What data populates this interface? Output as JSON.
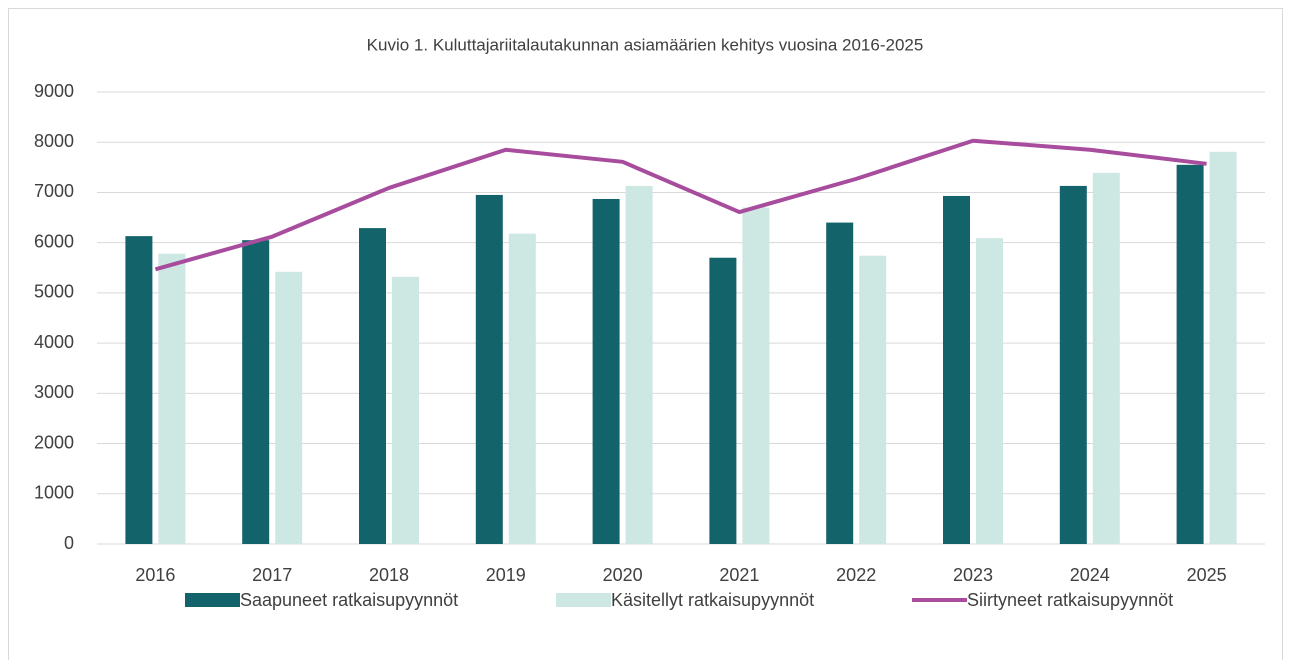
{
  "chart_data": {
    "type": "bar_line",
    "title": "Kuvio 1. Kuluttajariitalautakunnan asiamäärien kehitys vuosina 2016-2025",
    "categories": [
      "2016",
      "2017",
      "2018",
      "2019",
      "2020",
      "2021",
      "2022",
      "2023",
      "2024",
      "2025"
    ],
    "series": [
      {
        "name": "Saapuneet ratkaisupyynnöt",
        "type": "bar",
        "color": "#13636b",
        "values": [
          6130,
          6050,
          6290,
          6950,
          6870,
          5700,
          6400,
          6930,
          7130,
          7550
        ]
      },
      {
        "name": "Käsitellyt ratkaisupyynnöt",
        "type": "bar",
        "color": "#cde7e3",
        "values": [
          5780,
          5420,
          5320,
          6180,
          7130,
          6700,
          5740,
          6090,
          7390,
          7810
        ]
      },
      {
        "name": "Siirtyneet ratkaisupyynnöt",
        "type": "line",
        "color": "#a84c9e",
        "values": [
          5470,
          6120,
          7090,
          7850,
          7610,
          6610,
          7270,
          8030,
          7850,
          7570
        ]
      }
    ],
    "ylim": [
      0,
      9000
    ],
    "yticks": [
      0,
      1000,
      2000,
      3000,
      4000,
      5000,
      6000,
      7000,
      8000,
      9000
    ],
    "grid": true,
    "legend": "bottom"
  }
}
